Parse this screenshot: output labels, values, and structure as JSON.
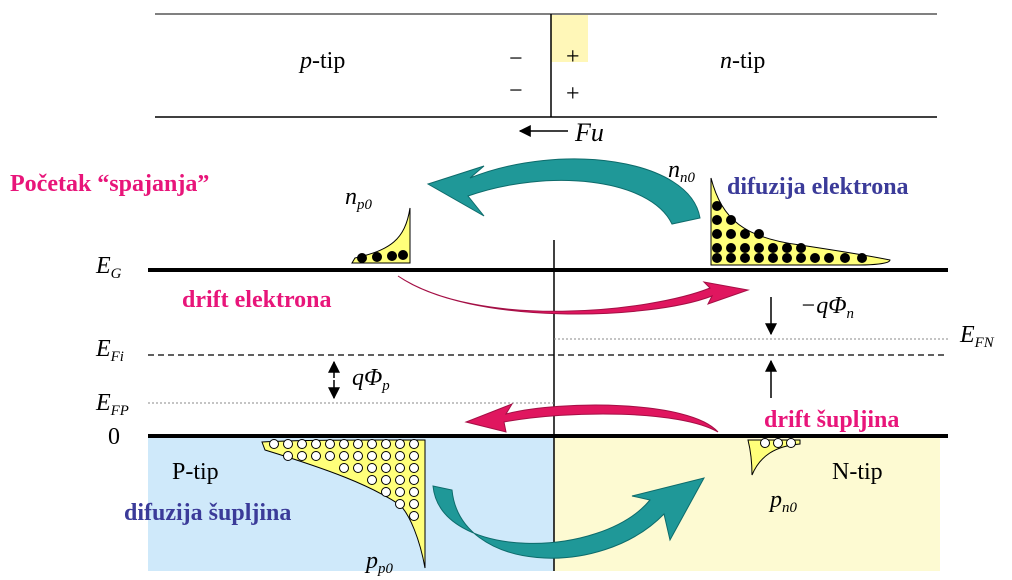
{
  "colors": {
    "headline": "#e8157a",
    "blue_label": "#3b3b99",
    "arrow_teal": "#1f9898",
    "arrow_magenta": "#e0165f",
    "p_region": "#cfe9fa",
    "n_region": "#fdfad2",
    "junction_highlight": "#fff7b8",
    "carrier_fill": "#ffff7a"
  },
  "header_strip": {
    "p_type": "p-tip",
    "n_type": "n-tip",
    "minus_1": "−",
    "minus_2": "−",
    "plus_1": "+",
    "plus_2": "+",
    "force": "F",
    "force_sub": "u"
  },
  "title": "Početak “spajanja”",
  "labels": {
    "diffusion_electrons": "difuzija elektrona",
    "drift_electrons": "drift elektrona",
    "drift_holes": "drift šupljina",
    "diffusion_holes": "difuzija šupljina",
    "p_tip": "P-tip",
    "n_tip": "N-tip"
  },
  "concentrations": {
    "np0": {
      "main": "n",
      "sub": "p0"
    },
    "nn0": {
      "main": "n",
      "sub": "n0"
    },
    "pp0": {
      "main": "p",
      "sub": "p0"
    },
    "pn0": {
      "main": "p",
      "sub": "n0"
    }
  },
  "energy_levels": {
    "eg": {
      "main": "E",
      "sub": "G"
    },
    "efi": {
      "main": "E",
      "sub": "Fi"
    },
    "efp": {
      "main": "E",
      "sub": "FP"
    },
    "efn": {
      "main": "E",
      "sub": "FN"
    },
    "zero": "0"
  },
  "potentials": {
    "phi_n": {
      "main": "−qΦ",
      "sub": "n"
    },
    "phi_p": {
      "main": "qΦ",
      "sub": "p"
    }
  }
}
